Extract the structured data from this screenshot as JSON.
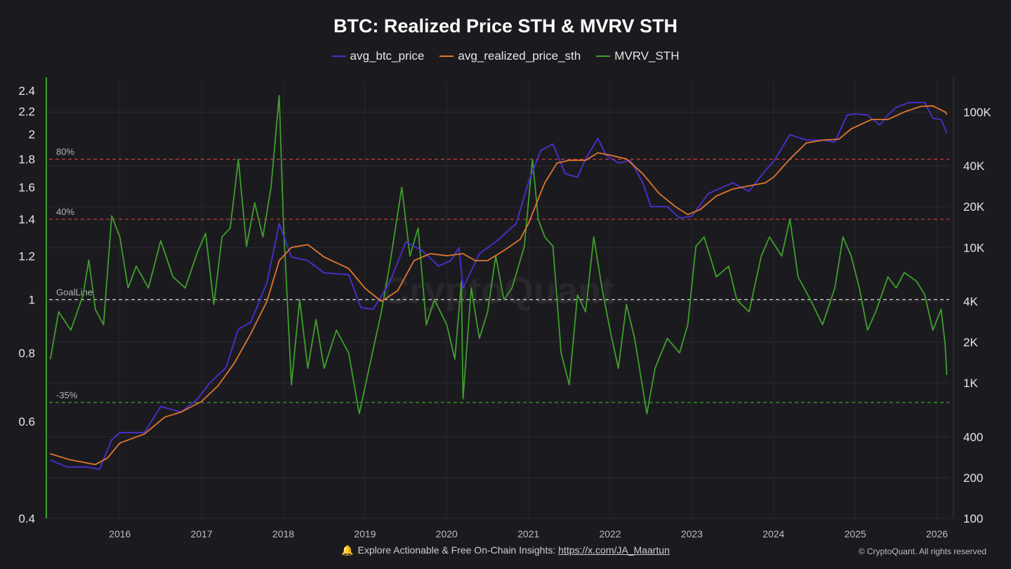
{
  "chart_data": {
    "type": "line",
    "title": "BTC: Realized Price STH & MVRV STH",
    "legend_placement": "top-center",
    "grid": true,
    "x_axis": {
      "range": [
        2015.1,
        2026.15
      ],
      "ticks": [
        "2016",
        "2017",
        "2018",
        "2019",
        "2020",
        "2021",
        "2022",
        "2023",
        "2024",
        "2025",
        "2026"
      ]
    },
    "y_left": {
      "label": "",
      "scale": "log",
      "range": [
        0.4,
        2.5
      ],
      "ticks": [
        "0.4",
        "0.6",
        "0.8",
        "1",
        "1.2",
        "1.4",
        "1.6",
        "1.8",
        "2",
        "2.2",
        "2.4"
      ]
    },
    "y_right": {
      "label": "",
      "scale": "log",
      "range": [
        100,
        170000
      ],
      "ticks": [
        "100",
        "200",
        "400",
        "1K",
        "2K",
        "4K",
        "10K",
        "20K",
        "40K",
        "100K"
      ]
    },
    "reference_lines": [
      {
        "label": "80%",
        "value": 1.8,
        "color": "#c0393b"
      },
      {
        "label": "40%",
        "value": 1.4,
        "color": "#c0393b"
      },
      {
        "label": "GoalLine",
        "value": 1.0,
        "color": "#d9d9d9"
      },
      {
        "label": "-35%",
        "value": 0.65,
        "color": "#3a8f2f"
      }
    ],
    "series": [
      {
        "name": "avg_btc_price",
        "axis": "right",
        "color": "#4b2fd4",
        "points": [
          [
            2015.15,
            270
          ],
          [
            2015.35,
            240
          ],
          [
            2015.6,
            240
          ],
          [
            2015.75,
            230
          ],
          [
            2015.9,
            380
          ],
          [
            2016.0,
            430
          ],
          [
            2016.3,
            430
          ],
          [
            2016.5,
            670
          ],
          [
            2016.75,
            610
          ],
          [
            2016.95,
            760
          ],
          [
            2017.1,
            1000
          ],
          [
            2017.3,
            1300
          ],
          [
            2017.45,
            2500
          ],
          [
            2017.6,
            2800
          ],
          [
            2017.8,
            5500
          ],
          [
            2017.95,
            15000
          ],
          [
            2018.1,
            8500
          ],
          [
            2018.3,
            8000
          ],
          [
            2018.5,
            6500
          ],
          [
            2018.8,
            6300
          ],
          [
            2018.95,
            3600
          ],
          [
            2019.1,
            3500
          ],
          [
            2019.3,
            5500
          ],
          [
            2019.5,
            11000
          ],
          [
            2019.7,
            9500
          ],
          [
            2019.9,
            7300
          ],
          [
            2020.05,
            8000
          ],
          [
            2020.15,
            10000
          ],
          [
            2020.2,
            5000
          ],
          [
            2020.4,
            9000
          ],
          [
            2020.6,
            11000
          ],
          [
            2020.85,
            15000
          ],
          [
            2021.0,
            30000
          ],
          [
            2021.15,
            52000
          ],
          [
            2021.3,
            58000
          ],
          [
            2021.45,
            35000
          ],
          [
            2021.6,
            33000
          ],
          [
            2021.7,
            45000
          ],
          [
            2021.85,
            64000
          ],
          [
            2021.95,
            48000
          ],
          [
            2022.1,
            42000
          ],
          [
            2022.25,
            44000
          ],
          [
            2022.4,
            30000
          ],
          [
            2022.5,
            20000
          ],
          [
            2022.7,
            20000
          ],
          [
            2022.85,
            16500
          ],
          [
            2023.0,
            17000
          ],
          [
            2023.2,
            25000
          ],
          [
            2023.5,
            30000
          ],
          [
            2023.7,
            26000
          ],
          [
            2023.9,
            37000
          ],
          [
            2024.0,
            43000
          ],
          [
            2024.2,
            68000
          ],
          [
            2024.4,
            62000
          ],
          [
            2024.6,
            62000
          ],
          [
            2024.75,
            60000
          ],
          [
            2024.9,
            95000
          ],
          [
            2025.0,
            97000
          ],
          [
            2025.15,
            95000
          ],
          [
            2025.3,
            80000
          ],
          [
            2025.4,
            95000
          ],
          [
            2025.5,
            108000
          ],
          [
            2025.65,
            117000
          ],
          [
            2025.85,
            118000
          ],
          [
            2025.95,
            90000
          ],
          [
            2026.05,
            88000
          ],
          [
            2026.12,
            70000
          ]
        ]
      },
      {
        "name": "avg_realized_price_sth",
        "axis": "right",
        "color": "#e0762f",
        "points": [
          [
            2015.15,
            300
          ],
          [
            2015.4,
            270
          ],
          [
            2015.7,
            250
          ],
          [
            2015.85,
            280
          ],
          [
            2016.0,
            360
          ],
          [
            2016.3,
            420
          ],
          [
            2016.55,
            560
          ],
          [
            2016.75,
            610
          ],
          [
            2017.0,
            730
          ],
          [
            2017.2,
            950
          ],
          [
            2017.4,
            1400
          ],
          [
            2017.6,
            2300
          ],
          [
            2017.8,
            4000
          ],
          [
            2017.95,
            8000
          ],
          [
            2018.1,
            10000
          ],
          [
            2018.3,
            10500
          ],
          [
            2018.5,
            8500
          ],
          [
            2018.8,
            7000
          ],
          [
            2019.0,
            5000
          ],
          [
            2019.2,
            4000
          ],
          [
            2019.4,
            4800
          ],
          [
            2019.6,
            8000
          ],
          [
            2019.8,
            9000
          ],
          [
            2020.0,
            8700
          ],
          [
            2020.2,
            9000
          ],
          [
            2020.35,
            8000
          ],
          [
            2020.5,
            8000
          ],
          [
            2020.7,
            9500
          ],
          [
            2020.9,
            11500
          ],
          [
            2021.0,
            15000
          ],
          [
            2021.2,
            30000
          ],
          [
            2021.35,
            42000
          ],
          [
            2021.5,
            44000
          ],
          [
            2021.7,
            44000
          ],
          [
            2021.85,
            50000
          ],
          [
            2022.0,
            48000
          ],
          [
            2022.2,
            45000
          ],
          [
            2022.4,
            35000
          ],
          [
            2022.6,
            25000
          ],
          [
            2022.8,
            20000
          ],
          [
            2022.95,
            17500
          ],
          [
            2023.1,
            19000
          ],
          [
            2023.3,
            24000
          ],
          [
            2023.5,
            27000
          ],
          [
            2023.7,
            28500
          ],
          [
            2023.9,
            30000
          ],
          [
            2024.0,
            33000
          ],
          [
            2024.2,
            45000
          ],
          [
            2024.4,
            59000
          ],
          [
            2024.6,
            62000
          ],
          [
            2024.8,
            63000
          ],
          [
            2024.95,
            75000
          ],
          [
            2025.2,
            88000
          ],
          [
            2025.4,
            88000
          ],
          [
            2025.6,
            100000
          ],
          [
            2025.8,
            110000
          ],
          [
            2025.95,
            111000
          ],
          [
            2026.1,
            100000
          ],
          [
            2026.12,
            96000
          ]
        ]
      },
      {
        "name": "MVRV_STH",
        "axis": "left",
        "color": "#3f9e2b",
        "points": [
          [
            2015.15,
            0.78
          ],
          [
            2015.25,
            0.95
          ],
          [
            2015.4,
            0.88
          ],
          [
            2015.55,
            1.02
          ],
          [
            2015.62,
            1.18
          ],
          [
            2015.7,
            0.96
          ],
          [
            2015.8,
            0.9
          ],
          [
            2015.9,
            1.42
          ],
          [
            2016.0,
            1.3
          ],
          [
            2016.1,
            1.05
          ],
          [
            2016.2,
            1.15
          ],
          [
            2016.35,
            1.05
          ],
          [
            2016.5,
            1.28
          ],
          [
            2016.65,
            1.1
          ],
          [
            2016.8,
            1.05
          ],
          [
            2016.95,
            1.22
          ],
          [
            2017.05,
            1.32
          ],
          [
            2017.15,
            0.98
          ],
          [
            2017.25,
            1.3
          ],
          [
            2017.35,
            1.35
          ],
          [
            2017.45,
            1.8
          ],
          [
            2017.55,
            1.25
          ],
          [
            2017.65,
            1.5
          ],
          [
            2017.75,
            1.3
          ],
          [
            2017.85,
            1.6
          ],
          [
            2017.95,
            2.35
          ],
          [
            2018.0,
            1.4
          ],
          [
            2018.1,
            0.7
          ],
          [
            2018.2,
            1.0
          ],
          [
            2018.3,
            0.75
          ],
          [
            2018.4,
            0.92
          ],
          [
            2018.5,
            0.75
          ],
          [
            2018.65,
            0.88
          ],
          [
            2018.8,
            0.8
          ],
          [
            2018.93,
            0.62
          ],
          [
            2019.05,
            0.75
          ],
          [
            2019.2,
            0.95
          ],
          [
            2019.3,
            1.15
          ],
          [
            2019.45,
            1.6
          ],
          [
            2019.55,
            1.2
          ],
          [
            2019.65,
            1.35
          ],
          [
            2019.75,
            0.9
          ],
          [
            2019.85,
            1.0
          ],
          [
            2020.0,
            0.9
          ],
          [
            2020.1,
            0.78
          ],
          [
            2020.18,
            1.08
          ],
          [
            2020.2,
            0.66
          ],
          [
            2020.3,
            1.05
          ],
          [
            2020.4,
            0.85
          ],
          [
            2020.5,
            0.95
          ],
          [
            2020.6,
            1.2
          ],
          [
            2020.7,
            1.0
          ],
          [
            2020.8,
            1.05
          ],
          [
            2020.95,
            1.25
          ],
          [
            2021.05,
            1.8
          ],
          [
            2021.12,
            1.4
          ],
          [
            2021.2,
            1.3
          ],
          [
            2021.3,
            1.25
          ],
          [
            2021.4,
            0.8
          ],
          [
            2021.5,
            0.7
          ],
          [
            2021.6,
            1.02
          ],
          [
            2021.7,
            0.95
          ],
          [
            2021.8,
            1.3
          ],
          [
            2021.9,
            1.05
          ],
          [
            2022.0,
            0.88
          ],
          [
            2022.1,
            0.75
          ],
          [
            2022.2,
            0.98
          ],
          [
            2022.3,
            0.85
          ],
          [
            2022.45,
            0.62
          ],
          [
            2022.55,
            0.75
          ],
          [
            2022.7,
            0.85
          ],
          [
            2022.85,
            0.8
          ],
          [
            2022.95,
            0.9
          ],
          [
            2023.05,
            1.25
          ],
          [
            2023.15,
            1.3
          ],
          [
            2023.3,
            1.1
          ],
          [
            2023.45,
            1.15
          ],
          [
            2023.55,
            1.0
          ],
          [
            2023.7,
            0.95
          ],
          [
            2023.85,
            1.2
          ],
          [
            2023.95,
            1.3
          ],
          [
            2024.1,
            1.2
          ],
          [
            2024.2,
            1.4
          ],
          [
            2024.3,
            1.1
          ],
          [
            2024.45,
            1.0
          ],
          [
            2024.6,
            0.9
          ],
          [
            2024.75,
            1.05
          ],
          [
            2024.85,
            1.3
          ],
          [
            2024.95,
            1.2
          ],
          [
            2025.05,
            1.05
          ],
          [
            2025.15,
            0.88
          ],
          [
            2025.25,
            0.95
          ],
          [
            2025.4,
            1.1
          ],
          [
            2025.5,
            1.05
          ],
          [
            2025.6,
            1.12
          ],
          [
            2025.75,
            1.08
          ],
          [
            2025.85,
            1.02
          ],
          [
            2025.95,
            0.88
          ],
          [
            2026.05,
            0.96
          ],
          [
            2026.1,
            0.83
          ],
          [
            2026.12,
            0.73
          ]
        ]
      }
    ]
  },
  "footer": {
    "text": "Explore Actionable & Free On-Chain Insights:",
    "link": "https://x.com/JA_Maartun"
  },
  "copyright": "© CryptoQuant. All rights reserved",
  "watermark": "CryptoQuant",
  "icons": [
    "bell-icon"
  ]
}
